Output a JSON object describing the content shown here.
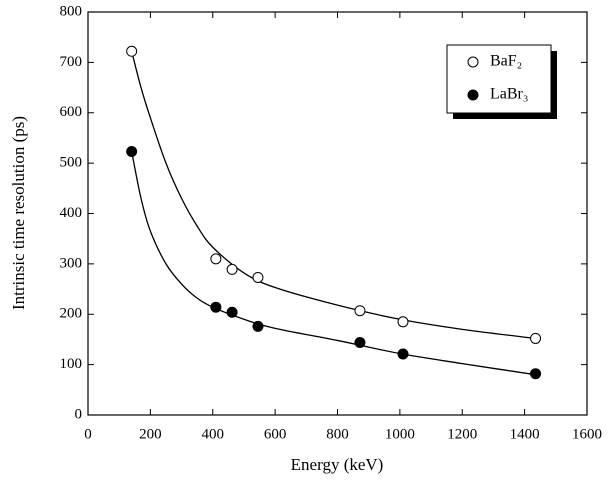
{
  "chart_data": {
    "type": "scatter",
    "xlabel": "Energy (keV)",
    "ylabel": "Intrinsic time resolution (ps)",
    "xlim": [
      0,
      1600
    ],
    "xticks": [
      0,
      200,
      400,
      600,
      800,
      1000,
      1200,
      1400,
      1600
    ],
    "ylim": [
      0,
      800
    ],
    "yticks": [
      0,
      100,
      200,
      300,
      400,
      500,
      600,
      700,
      800
    ],
    "grid": false,
    "legend": "upper right",
    "series": [
      {
        "name": "BaF₂",
        "color": "#000000",
        "fill": "#ffffff",
        "x": [
          140,
          410,
          462,
          545,
          872,
          1010,
          1435
        ],
        "values": [
          722,
          310,
          289,
          273,
          207,
          185,
          152
        ],
        "fit_x": [
          140,
          170,
          200,
          250,
          300,
          350,
          400,
          500,
          600,
          800,
          1000,
          1200,
          1435
        ],
        "fit_values": [
          722,
          650,
          590,
          500,
          430,
          375,
          333,
          282,
          253,
          218,
          190,
          170,
          152
        ]
      },
      {
        "name": "LaBr₃",
        "color": "#000000",
        "fill": "#000000",
        "x": [
          140,
          410,
          462,
          545,
          872,
          1010,
          1435
        ],
        "values": [
          523,
          214,
          204,
          176,
          144,
          121,
          82
        ],
        "fit_x": [
          140,
          170,
          200,
          250,
          300,
          350,
          400,
          500,
          600,
          800,
          1000,
          1200,
          1435
        ],
        "fit_values": [
          523,
          430,
          365,
          300,
          260,
          232,
          214,
          190,
          172,
          148,
          122,
          102,
          80
        ]
      }
    ]
  }
}
